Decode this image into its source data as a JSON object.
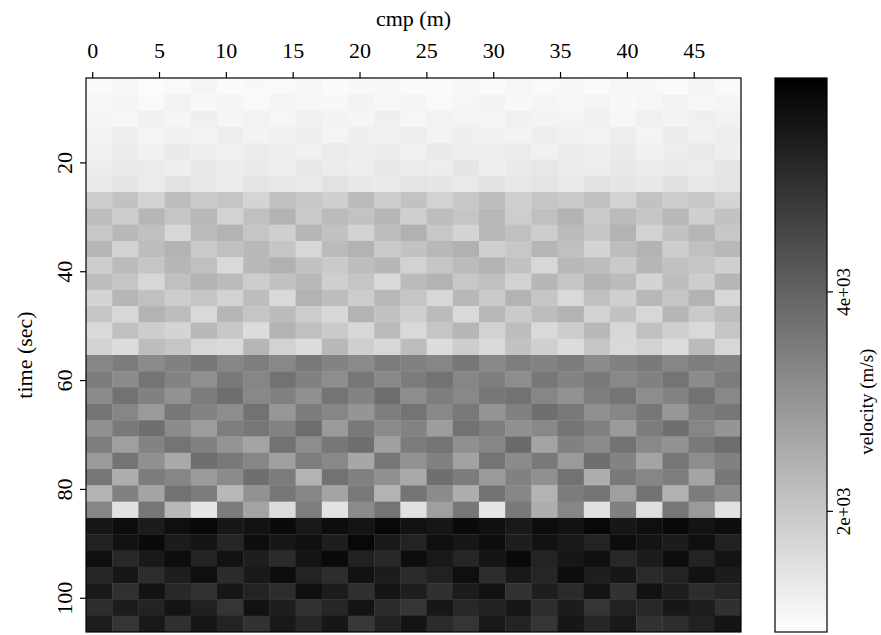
{
  "chart_data": {
    "type": "heatmap",
    "x_label": "cmp (m)",
    "y_label": "time (sec)",
    "xlim": [
      -0.5,
      48.5
    ],
    "ylim": [
      4.4,
      106.2
    ],
    "xticks": [
      0,
      5,
      10,
      15,
      20,
      25,
      30,
      35,
      40,
      45
    ],
    "yticks": [
      20,
      40,
      60,
      80,
      100
    ],
    "colorbar": {
      "label": "velocity (m/s)",
      "range": [
        900,
        5950
      ],
      "ticks": [
        {
          "value": 2000,
          "label": "2e+03"
        },
        {
          "value": 4000,
          "label": "4e+03"
        }
      ]
    },
    "cells": [
      [
        1000,
        1050,
        980,
        1020,
        1100,
        990,
        1040,
        1010,
        1060,
        1000,
        1030,
        1080,
        990,
        1020,
        1050,
        1000,
        1070,
        1010,
        1040,
        990,
        1060,
        1030,
        1000,
        1090,
        1020
      ],
      [
        1060,
        1100,
        1020,
        1150,
        1040,
        1090,
        1010,
        1120,
        1070,
        1030,
        1140,
        1050,
        1100,
        1020,
        1080,
        1130,
        1040,
        1090,
        1060,
        1110,
        1030,
        1080,
        1150,
        1050,
        1100
      ],
      [
        1120,
        1080,
        1180,
        1100,
        1210,
        1090,
        1150,
        1070,
        1190,
        1130,
        1100,
        1220,
        1080,
        1160,
        1120,
        1090,
        1200,
        1140,
        1110,
        1170,
        1080,
        1190,
        1130,
        1210,
        1150
      ],
      [
        1150,
        1230,
        1120,
        1200,
        1160,
        1250,
        1130,
        1190,
        1240,
        1110,
        1210,
        1170,
        1260,
        1140,
        1220,
        1180,
        1130,
        1250,
        1190,
        1160,
        1230,
        1120,
        1270,
        1180,
        1240
      ],
      [
        1200,
        1280,
        1170,
        1310,
        1220,
        1190,
        1290,
        1240,
        1180,
        1300,
        1230,
        1270,
        1190,
        1320,
        1210,
        1260,
        1300,
        1180,
        1280,
        1230,
        1310,
        1200,
        1260,
        1340,
        1220
      ],
      [
        1250,
        1330,
        1290,
        1220,
        1360,
        1270,
        1310,
        1240,
        1380,
        1280,
        1230,
        1350,
        1300,
        1260,
        1390,
        1240,
        1320,
        1370,
        1280,
        1250,
        1360,
        1300,
        1340,
        1290,
        1400
      ],
      [
        1320,
        1410,
        1300,
        1450,
        1350,
        1280,
        1430,
        1380,
        1320,
        1470,
        1360,
        1310,
        1440,
        1390,
        1340,
        1480,
        1370,
        1420,
        1330,
        1460,
        1400,
        1350,
        1490,
        1380,
        1440
      ],
      [
        1900,
        2100,
        1800,
        2200,
        1950,
        2050,
        1750,
        2150,
        2000,
        1850,
        2250,
        1900,
        2100,
        1800,
        2000,
        2200,
        1850,
        2050,
        1950,
        2150,
        1800,
        2100,
        1900,
        2000,
        1750
      ],
      [
        2200,
        1900,
        2350,
        2050,
        2300,
        1800,
        2150,
        2400,
        1950,
        2250,
        2100,
        2350,
        1850,
        2200,
        2050,
        2300,
        1900,
        2150,
        2400,
        1950,
        2250,
        2050,
        2300,
        1850,
        2100
      ],
      [
        2000,
        2300,
        2150,
        1700,
        2250,
        2400,
        2050,
        1850,
        2350,
        2100,
        1800,
        2200,
        2450,
        2000,
        1750,
        2300,
        2150,
        1900,
        2250,
        2050,
        2400,
        1800,
        2100,
        2350,
        2000
      ],
      [
        2350,
        1800,
        2200,
        2400,
        1950,
        2150,
        2300,
        2050,
        1700,
        2250,
        2400,
        1950,
        2100,
        2300,
        2450,
        1850,
        2000,
        2350,
        2150,
        1750,
        2200,
        2400,
        1900,
        2150,
        2300
      ],
      [
        1900,
        2250,
        2050,
        2350,
        2150,
        1650,
        2300,
        2450,
        2100,
        1950,
        2200,
        2350,
        1800,
        2050,
        2250,
        2400,
        2100,
        1700,
        2300,
        2200,
        1950,
        2350,
        2150,
        2050,
        1850
      ],
      [
        2200,
        2050,
        1700,
        2150,
        2400,
        2250,
        1900,
        2100,
        2300,
        1850,
        2050,
        1650,
        2250,
        2400,
        2000,
        2150,
        1800,
        2350,
        2050,
        2400,
        2250,
        1750,
        2200,
        1900,
        2350
      ],
      [
        1750,
        2350,
        2150,
        1900,
        2050,
        1800,
        2200,
        1650,
        2400,
        2200,
        1900,
        2300,
        2050,
        1700,
        2300,
        1950,
        2400,
        2050,
        1650,
        2150,
        1850,
        2300,
        2050,
        2400,
        1700
      ],
      [
        2050,
        1700,
        2400,
        2200,
        1650,
        2350,
        2050,
        2250,
        1900,
        1700,
        2400,
        2100,
        1850,
        2250,
        1650,
        2300,
        1950,
        2200,
        2400,
        1800,
        2100,
        1700,
        2350,
        1950,
        2200
      ],
      [
        1650,
        2150,
        1900,
        1750,
        2300,
        2000,
        1600,
        2400,
        2150,
        1950,
        1700,
        2250,
        1650,
        2050,
        2350,
        1800,
        2200,
        1650,
        1900,
        2300,
        1700,
        2150,
        1850,
        1650,
        2050
      ],
      [
        1800,
        1600,
        2200,
        2050,
        1700,
        1650,
        2350,
        1800,
        1600,
        2300,
        1850,
        1700,
        2200,
        1600,
        1900,
        1650,
        2100,
        1850,
        1600,
        2050,
        1650,
        1800,
        1600,
        2250,
        1700
      ],
      [
        3300,
        3500,
        3200,
        3400,
        3600,
        3300,
        3450,
        3250,
        3550,
        3350,
        3200,
        3500,
        3400,
        3300,
        3600,
        3250,
        3450,
        3350,
        3500,
        3200,
        3400,
        3550,
        3300,
        3450,
        3350
      ],
      [
        3500,
        3200,
        3650,
        3350,
        3100,
        3550,
        3300,
        3700,
        3400,
        3150,
        3600,
        3250,
        3500,
        3700,
        3300,
        3450,
        3150,
        3600,
        3350,
        3550,
        3250,
        3400,
        3650,
        3200,
        3500
      ],
      [
        3200,
        3700,
        3400,
        3050,
        3500,
        3750,
        3250,
        3400,
        3100,
        3650,
        3350,
        3800,
        3150,
        3450,
        3250,
        3600,
        3700,
        3300,
        3050,
        3450,
        3650,
        3150,
        3350,
        3700,
        3250
      ],
      [
        3650,
        3300,
        2900,
        3600,
        3350,
        3150,
        3700,
        2950,
        3500,
        3300,
        3000,
        3450,
        3650,
        3250,
        3550,
        3000,
        3400,
        3750,
        3550,
        3100,
        3300,
        3600,
        2950,
        3450,
        3600
      ],
      [
        3100,
        3550,
        3750,
        3200,
        2850,
        3450,
        3600,
        3350,
        3800,
        2900,
        3550,
        3200,
        3350,
        2850,
        3700,
        3450,
        3100,
        3250,
        3650,
        3400,
        2900,
        3500,
        3750,
        3300,
        3000
      ],
      [
        3450,
        2800,
        3350,
        3650,
        3400,
        3000,
        2700,
        3700,
        3150,
        3600,
        3750,
        2800,
        3500,
        3650,
        3100,
        3300,
        3850,
        2700,
        3400,
        3200,
        3700,
        3250,
        3050,
        3550,
        3800
      ],
      [
        2900,
        3650,
        3100,
        2600,
        3750,
        3550,
        3300,
        2800,
        3450,
        3250,
        2650,
        3600,
        3050,
        3400,
        2750,
        3650,
        3200,
        3550,
        2900,
        3750,
        3350,
        2700,
        3600,
        3150,
        3400
      ],
      [
        3600,
        2500,
        3500,
        3300,
        2900,
        3200,
        3750,
        3500,
        2400,
        3700,
        3400,
        3100,
        2600,
        3750,
        3500,
        2900,
        3400,
        3100,
        3700,
        2500,
        3550,
        3300,
        3450,
        2700,
        3600
      ],
      [
        2400,
        3400,
        2700,
        3700,
        3500,
        2300,
        3050,
        3600,
        3300,
        2700,
        3550,
        2400,
        3650,
        3200,
        2500,
        3700,
        3300,
        2400,
        3500,
        3650,
        2800,
        3700,
        2450,
        3500,
        3200
      ],
      [
        3300,
        1500,
        3600,
        2300,
        1400,
        3500,
        2700,
        1600,
        3450,
        1450,
        3200,
        3650,
        1500,
        2800,
        3600,
        1400,
        3550,
        2500,
        3300,
        1500,
        3400,
        1550,
        3600,
        2900,
        1500
      ],
      [
        5500,
        5700,
        5400,
        5650,
        5800,
        5500,
        5600,
        5750,
        5450,
        5700,
        5550,
        5800,
        5600,
        5500,
        5750,
        5650,
        5450,
        5700,
        5600,
        5800,
        5500,
        5650,
        5750,
        5550,
        5700
      ],
      [
        5300,
        5600,
        5750,
        5400,
        5550,
        5200,
        5700,
        5500,
        5650,
        5350,
        5800,
        5450,
        5250,
        5650,
        5500,
        5700,
        5350,
        5600,
        5450,
        5250,
        5700,
        5550,
        5400,
        5650,
        5300
      ],
      [
        5650,
        5150,
        5450,
        5700,
        5250,
        5600,
        5350,
        5100,
        5550,
        5750,
        5300,
        5150,
        5700,
        5450,
        5200,
        5550,
        5750,
        5250,
        5500,
        5650,
        5150,
        5400,
        5700,
        5250,
        5550
      ],
      [
        5200,
        5500,
        5050,
        5350,
        5650,
        5100,
        5450,
        5700,
        5250,
        5050,
        5600,
        5400,
        5100,
        5300,
        5650,
        5050,
        5450,
        5200,
        5700,
        5350,
        5500,
        5100,
        5250,
        5600,
        5400
      ],
      [
        5450,
        5000,
        5600,
        5150,
        4950,
        5500,
        5250,
        5050,
        5650,
        5400,
        5000,
        5550,
        5350,
        5000,
        5400,
        5600,
        4950,
        5350,
        5100,
        5550,
        4950,
        5600,
        5350,
        5050,
        5200
      ],
      [
        5050,
        5400,
        5250,
        5550,
        5300,
        4900,
        5600,
        5350,
        4950,
        5200,
        5550,
        5100,
        4900,
        5500,
        5150,
        5300,
        5500,
        5050,
        5400,
        4900,
        5300,
        5150,
        5500,
        5350,
        5000
      ],
      [
        5350,
        4900,
        5450,
        5000,
        5500,
        5250,
        4950,
        5450,
        5200,
        5500,
        4850,
        5300,
        5550,
        5100,
        4900,
        5450,
        5250,
        4900,
        5500,
        5200,
        5450,
        4950,
        5050,
        5300,
        5550
      ]
    ]
  }
}
